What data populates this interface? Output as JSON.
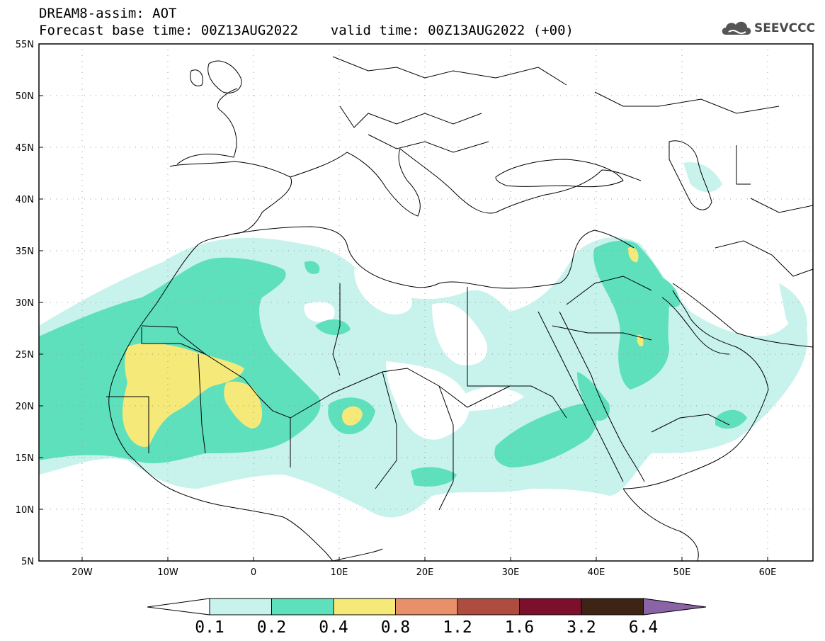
{
  "header": {
    "title": "DREAM8-assim: AOT",
    "subtitle": "Forecast base time: 00Z13AUG2022    valid time: 00Z13AUG2022 (+00)"
  },
  "logo": {
    "text": "SEEVCCC",
    "icon": "cloud-icon"
  },
  "axes": {
    "lon_ticks": [
      "20W",
      "10W",
      "0",
      "10E",
      "20E",
      "30E",
      "40E",
      "50E",
      "60E"
    ],
    "lat_ticks": [
      "55N",
      "50N",
      "45N",
      "40N",
      "35N",
      "30N",
      "25N",
      "20N",
      "15N",
      "10N",
      "5N"
    ],
    "lon_range": [
      -25,
      65
    ],
    "lat_range": [
      5,
      55
    ]
  },
  "colorbar": {
    "levels": [
      "0.1",
      "0.2",
      "0.4",
      "0.8",
      "1.2",
      "1.6",
      "3.2",
      "6.4"
    ],
    "colors": [
      "#ffffff",
      "#c8f2ec",
      "#5ee0bd",
      "#f5e97a",
      "#e8906a",
      "#ad4c3f",
      "#7b0f2c",
      "#3e2415",
      "#8a64a6"
    ]
  },
  "colors": {
    "aot_0_1_0_2": "#c8f2ec",
    "aot_0_2_0_4": "#5ee0bd",
    "aot_0_4_0_8": "#f5e97a",
    "coast": "#000000",
    "grid": "#888888"
  }
}
